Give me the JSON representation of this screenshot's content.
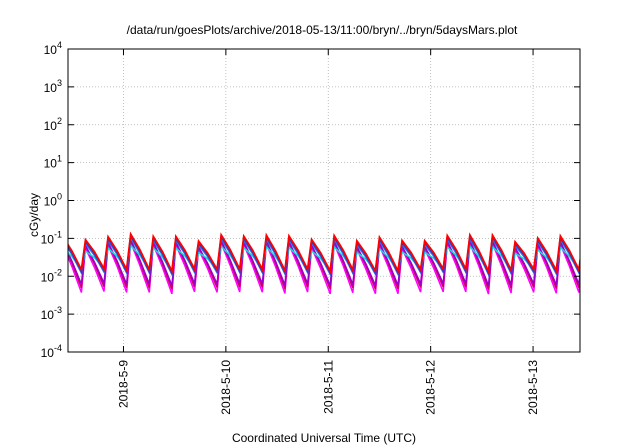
{
  "chart_data": {
    "type": "line",
    "title": "/data/run/goesPlots/archive/2018-05-13/11:00/bryn/../bryn/5daysMars.plot",
    "xlabel": "Coordinated Universal Time (UTC)",
    "ylabel": "cGy/day",
    "y_scale": "log",
    "ylim": [
      0.0001,
      10000
    ],
    "y_ticks": [
      {
        "base": "10",
        "exp": "4",
        "value": 10000
      },
      {
        "base": "10",
        "exp": "3",
        "value": 1000
      },
      {
        "base": "10",
        "exp": "2",
        "value": 100
      },
      {
        "base": "10",
        "exp": "1",
        "value": 10
      },
      {
        "base": "10",
        "exp": "0",
        "value": 1
      },
      {
        "base": "10",
        "exp": "-1",
        "value": 0.1
      },
      {
        "base": "10",
        "exp": "-2",
        "value": 0.01
      },
      {
        "base": "10",
        "exp": "-3",
        "value": 0.001
      },
      {
        "base": "10",
        "exp": "-4",
        "value": 0.0001
      }
    ],
    "x_range_days": [
      "2018-05-08 11:00",
      "2018-05-13 11:00"
    ],
    "x_ticks": [
      "2018-5-9",
      "2018-5-10",
      "2018-5-11",
      "2018-5-12",
      "2018-5-13"
    ],
    "grid": true,
    "pattern": {
      "description": "sawtooth dose rate series, roughly 4.5 cycles per day",
      "period_hours": 5.3,
      "peak_range": [
        0.04,
        0.11
      ],
      "trough_range": [
        0.0025,
        0.012
      ]
    },
    "series": [
      {
        "color": "#ff00ff",
        "peak": 0.06,
        "trough": 0.003
      },
      {
        "color": "#cc0066",
        "peak": 0.07,
        "trough": 0.004
      },
      {
        "color": "#9900cc",
        "peak": 0.07,
        "trough": 0.005
      },
      {
        "color": "#00e5d5",
        "peak": 0.05,
        "trough": 0.012
      },
      {
        "color": "#3a6ee8",
        "peak": 0.08,
        "trough": 0.01
      },
      {
        "color": "#2040c0",
        "peak": 0.09,
        "trough": 0.011
      },
      {
        "color": "#ff0000",
        "peak": 0.1,
        "trough": 0.012
      }
    ]
  }
}
